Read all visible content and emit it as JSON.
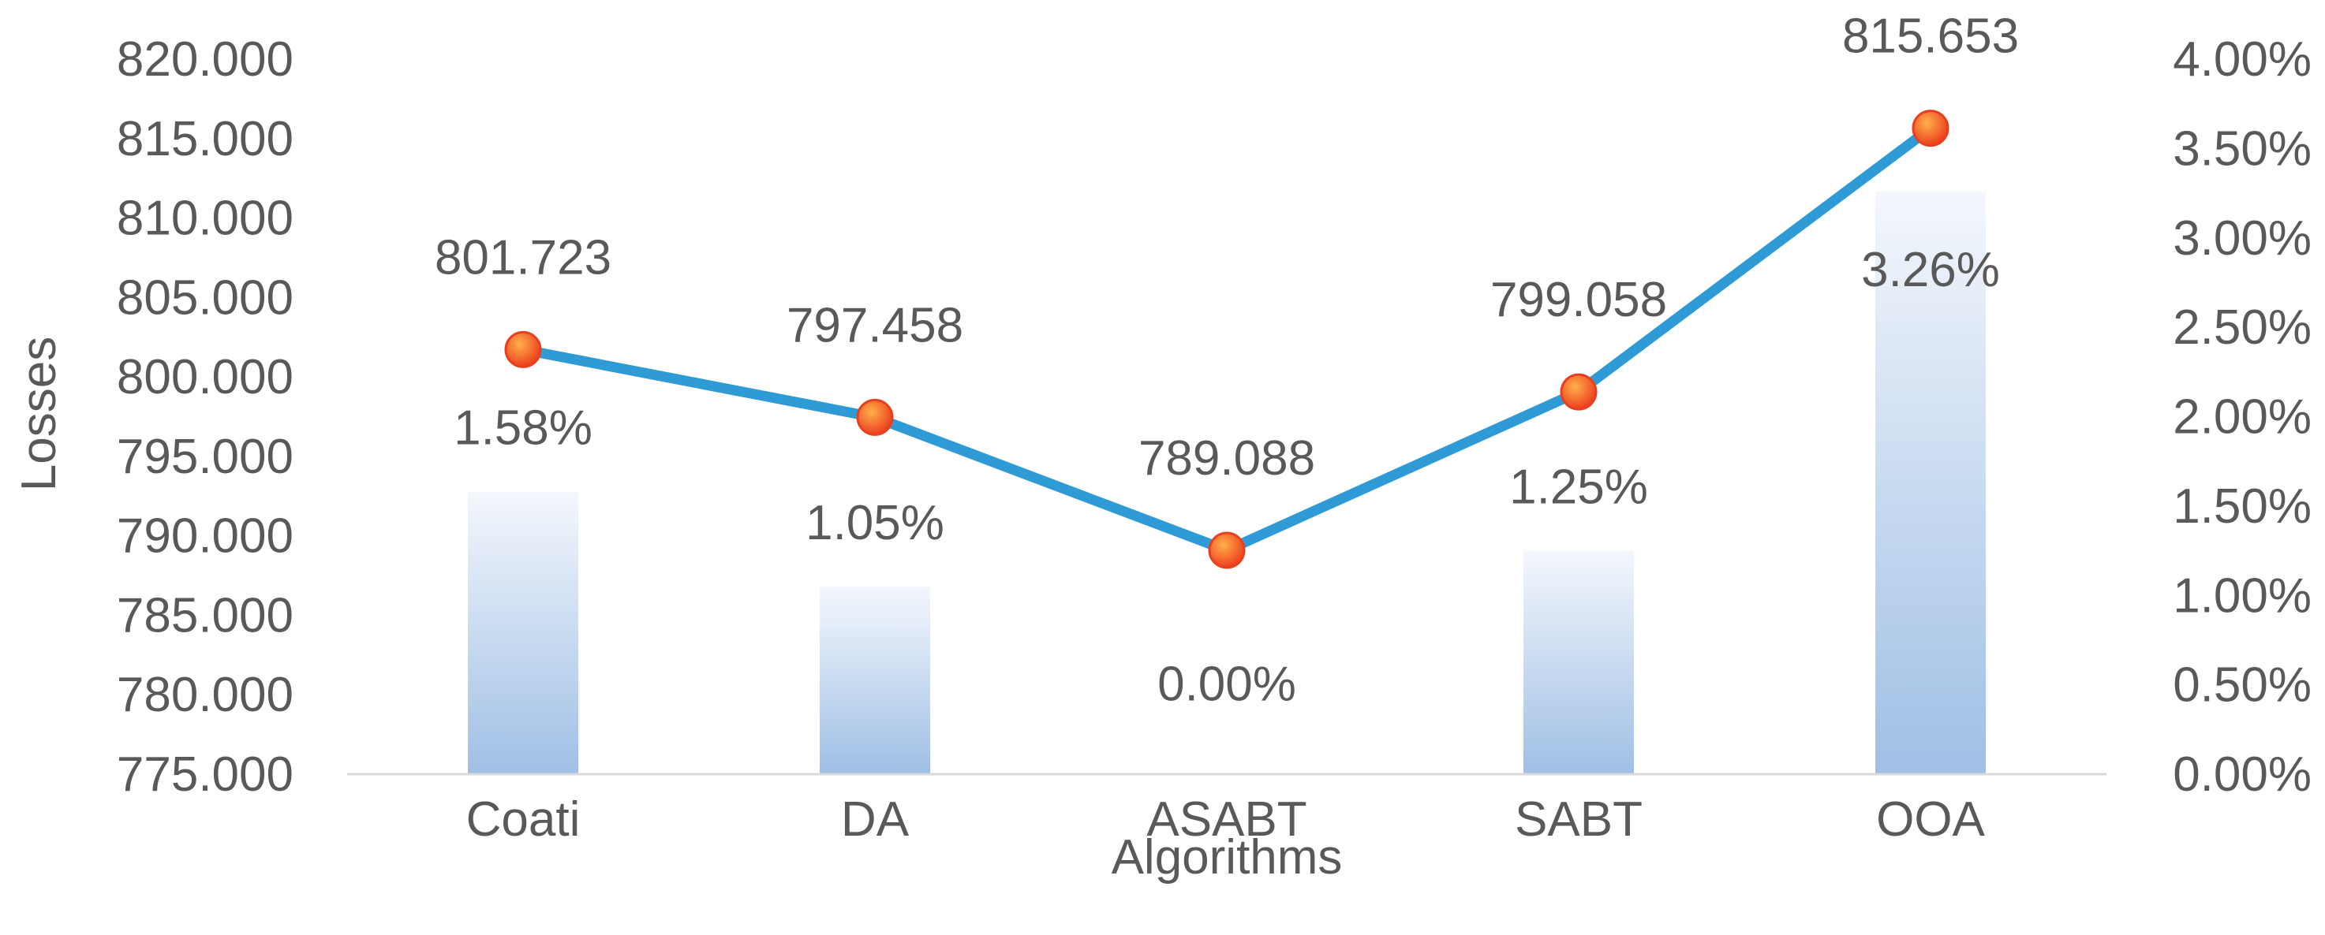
{
  "chart_data": {
    "type": "bar+line",
    "xlabel": "Algorithms",
    "ylabel": "Losses",
    "categories": [
      "Coati",
      "DA",
      "ASABT",
      "SABT",
      "OOA"
    ],
    "y_left": {
      "lim": [
        775,
        820
      ],
      "ticks": [
        "775.000",
        "780.000",
        "785.000",
        "790.000",
        "795.000",
        "800.000",
        "805.000",
        "810.000",
        "815.000",
        "820.000"
      ]
    },
    "y_right": {
      "lim": [
        0,
        4
      ],
      "ticks": [
        "0.00%",
        "0.50%",
        "1.00%",
        "1.50%",
        "2.00%",
        "2.50%",
        "3.00%",
        "3.50%",
        "4.00%"
      ]
    },
    "line_series": {
      "values": [
        801.723,
        797.458,
        789.088,
        799.058,
        815.653
      ],
      "labels": [
        "801.723",
        "797.458",
        "789.088",
        "799.058",
        "815.653"
      ],
      "axis": "left",
      "color": "#2e9bd6",
      "marker_color": "#f0532a"
    },
    "bar_series": {
      "values": [
        1.58,
        1.05,
        0.0,
        1.25,
        3.26
      ],
      "labels": [
        "1.58%",
        "1.05%",
        "0.00%",
        "1.25%",
        "3.26%"
      ],
      "axis": "right",
      "color_top": "#f2f6fb",
      "color_bottom": "#a4c3e6"
    },
    "grid": false,
    "legend": "none"
  }
}
